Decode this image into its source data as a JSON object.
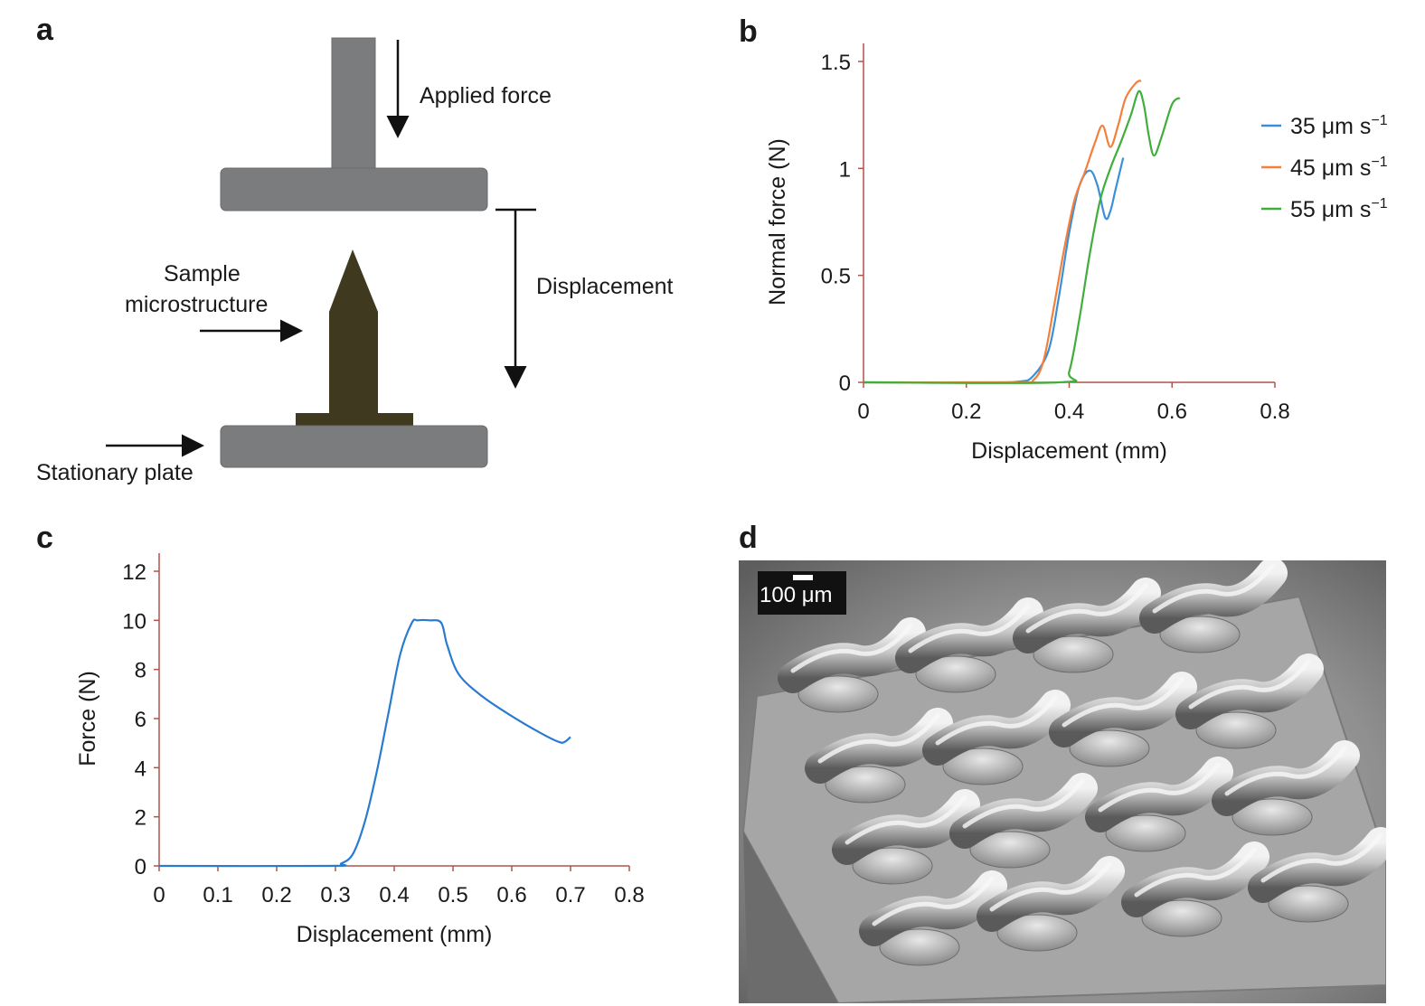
{
  "panels": {
    "a": {
      "letter": "a",
      "applied_force": "Applied force",
      "displacement": "Displacement",
      "sample_line1": "Sample",
      "sample_line2": "microstructure",
      "stationary_plate": "Stationary plate",
      "colors": {
        "plate": "#7b7c7e",
        "microstructure": "#3f3920"
      }
    },
    "b": {
      "letter": "b"
    },
    "c": {
      "letter": "c"
    },
    "d": {
      "letter": "d",
      "scale_label": "100 μm"
    }
  },
  "chart_data": [
    {
      "panel": "b",
      "type": "line",
      "xlabel": "Displacement (mm)",
      "ylabel": "Normal force (N)",
      "xlim": [
        0,
        0.8
      ],
      "ylim": [
        0,
        1.5
      ],
      "x_ticks": [
        "0",
        "0.2",
        "0.4",
        "0.6",
        "0.8"
      ],
      "y_ticks": [
        "0",
        "0.5",
        "1",
        "1.5"
      ],
      "legend_position": "right",
      "legend": [
        {
          "text": "35 μm s",
          "sup": "−1",
          "color": "#3b8fd8"
        },
        {
          "text": "45 μm s",
          "sup": "−1",
          "color": "#f47f3a"
        },
        {
          "text": "55 μm s",
          "sup": "−1",
          "color": "#3fae3a"
        }
      ],
      "series": [
        {
          "name": "35 μm s−1",
          "color": "#3b8fd8",
          "x": [
            0,
            0.2,
            0.3,
            0.33,
            0.36,
            0.38,
            0.4,
            0.42,
            0.44,
            0.455,
            0.47,
            0.48,
            0.49,
            0.505
          ],
          "y": [
            0,
            0,
            0.003,
            0.03,
            0.15,
            0.4,
            0.7,
            0.92,
            0.99,
            0.92,
            0.77,
            0.8,
            0.9,
            1.05
          ]
        },
        {
          "name": "45 μm s−1",
          "color": "#f47f3a",
          "x": [
            0,
            0.3,
            0.33,
            0.35,
            0.37,
            0.39,
            0.41,
            0.43,
            0.45,
            0.465,
            0.48,
            0.495,
            0.51,
            0.53,
            0.54
          ],
          "y": [
            0,
            0,
            0.01,
            0.1,
            0.35,
            0.62,
            0.85,
            0.98,
            1.12,
            1.2,
            1.1,
            1.2,
            1.33,
            1.4,
            1.41
          ]
        },
        {
          "name": "55 μm s−1",
          "color": "#3fae3a",
          "x": [
            0,
            0.38,
            0.4,
            0.42,
            0.44,
            0.46,
            0.48,
            0.5,
            0.52,
            0.535,
            0.545,
            0.555,
            0.565,
            0.58,
            0.6,
            0.615
          ],
          "y": [
            0,
            0,
            0.05,
            0.3,
            0.6,
            0.85,
            1.0,
            1.12,
            1.25,
            1.36,
            1.3,
            1.15,
            1.06,
            1.15,
            1.3,
            1.33
          ]
        }
      ]
    },
    {
      "panel": "c",
      "type": "line",
      "xlabel": "Displacement (mm)",
      "ylabel": "Force (N)",
      "xlim": [
        0,
        0.8
      ],
      "ylim": [
        0,
        12
      ],
      "x_ticks": [
        "0",
        "0.1",
        "0.2",
        "0.3",
        "0.4",
        "0.5",
        "0.6",
        "0.7",
        "0.8"
      ],
      "y_ticks": [
        "0",
        "2",
        "4",
        "6",
        "8",
        "10",
        "12"
      ],
      "series": [
        {
          "color": "#2a7bd0",
          "x": [
            0,
            0.29,
            0.31,
            0.33,
            0.35,
            0.37,
            0.39,
            0.41,
            0.43,
            0.44,
            0.46,
            0.48,
            0.49,
            0.51,
            0.55,
            0.6,
            0.65,
            0.68,
            0.69,
            0.7
          ],
          "y": [
            0,
            0,
            0.1,
            0.5,
            1.8,
            3.8,
            6.2,
            8.6,
            9.9,
            10.0,
            10.0,
            9.9,
            9.0,
            7.8,
            6.9,
            6.1,
            5.4,
            5.05,
            5.05,
            5.25
          ]
        }
      ]
    }
  ]
}
